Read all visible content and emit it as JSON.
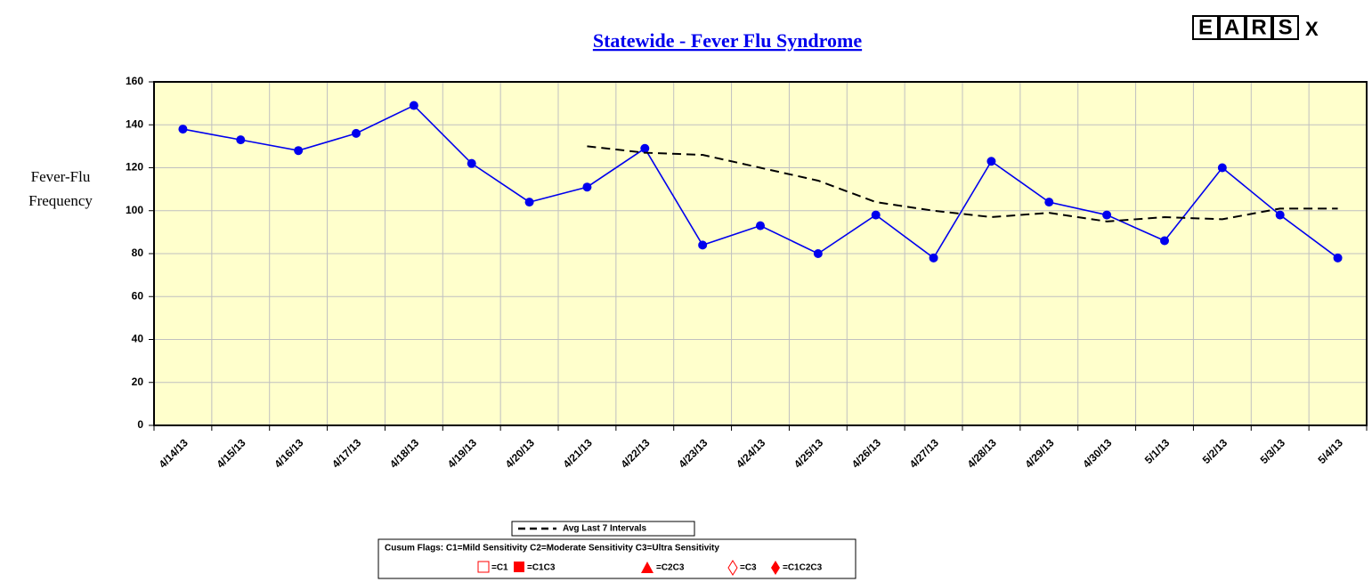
{
  "chart_data": {
    "type": "line",
    "title": "Statewide - Fever Flu Syndrome",
    "logo": {
      "text": "EARS",
      "suffix": "X"
    },
    "y_label": [
      "Fever-Flu",
      "Frequency"
    ],
    "categories": [
      "4/14/13",
      "4/15/13",
      "4/16/13",
      "4/17/13",
      "4/18/13",
      "4/19/13",
      "4/20/13",
      "4/21/13",
      "4/22/13",
      "4/23/13",
      "4/24/13",
      "4/25/13",
      "4/26/13",
      "4/27/13",
      "4/28/13",
      "4/29/13",
      "4/30/13",
      "5/1/13",
      "5/2/13",
      "5/3/13",
      "5/4/13"
    ],
    "series": [
      {
        "color": "#0000ee",
        "markers": true,
        "dash": false,
        "values": [
          138,
          133,
          128,
          136,
          149,
          122,
          104,
          111,
          129,
          84,
          93,
          80,
          98,
          78,
          123,
          104,
          98,
          86,
          120,
          98,
          78
        ]
      },
      {
        "name": "Avg Last 7 Intervals",
        "color": "#000000",
        "markers": false,
        "dash": true,
        "values": [
          null,
          null,
          null,
          null,
          null,
          null,
          null,
          130,
          127,
          126,
          120,
          114,
          104,
          100,
          97,
          99,
          95,
          97,
          96,
          101,
          101
        ]
      }
    ],
    "ylim": [
      0,
      160
    ],
    "yticks": [
      0,
      20,
      40,
      60,
      80,
      100,
      120,
      140,
      160
    ],
    "grid": true,
    "plot_background": "#ffffcc",
    "cusum_legend": {
      "heading": "Cusum Flags:  C1=Mild Sensitivity  C2=Moderate Sensitivity  C3=Ultra Sensitivity",
      "items": [
        "=C1",
        "=C1C3",
        "=C2C3",
        "=C3",
        "=C1C2C3"
      ]
    }
  }
}
